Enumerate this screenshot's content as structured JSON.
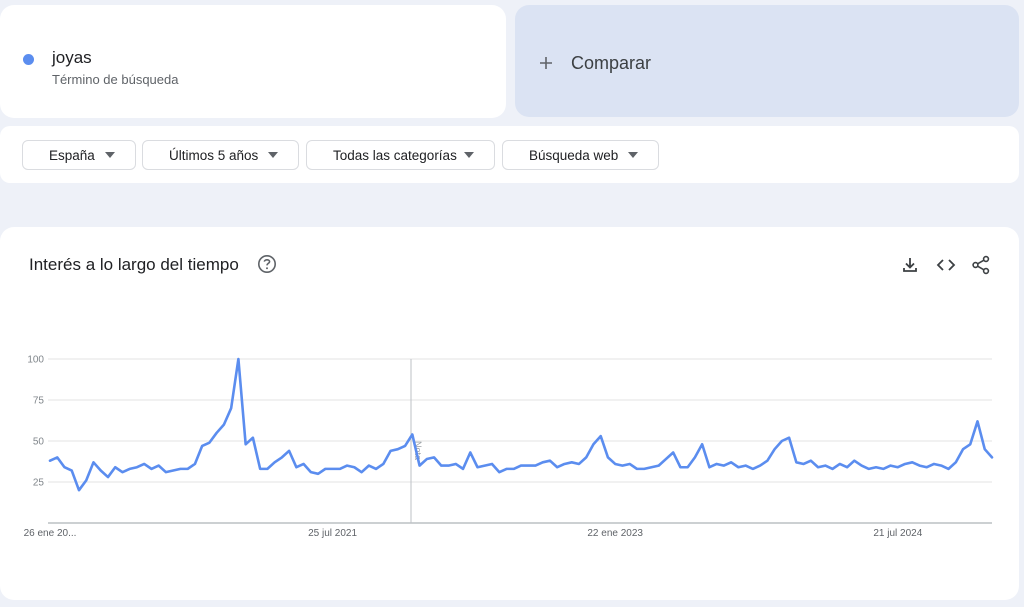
{
  "search_term": {
    "name": "joyas",
    "subtitle": "Término de búsqueda"
  },
  "compare_label": "Comparar",
  "filters": [
    "España",
    "Últimos 5 años",
    "Todas las categorías",
    "Búsqueda web"
  ],
  "chart_data": {
    "type": "line",
    "title": "Interés a lo largo del tiempo",
    "annotation": "Nota",
    "color": "#5b8def",
    "grid": true,
    "ylim": [
      0,
      100
    ],
    "yticks": [
      25,
      50,
      75,
      100
    ],
    "categories": [
      "26 ene 20...",
      null,
      null,
      null,
      null,
      null,
      null,
      null,
      null,
      null,
      null,
      null,
      null,
      null,
      null,
      null,
      null,
      null,
      null,
      null,
      null,
      null,
      null,
      null,
      null,
      null,
      null,
      null,
      null,
      null,
      null,
      null,
      null,
      null,
      null,
      null,
      null,
      null,
      null,
      "25 jul 2021",
      null,
      null,
      null,
      null,
      null,
      null,
      null,
      null,
      null,
      null,
      null,
      null,
      null,
      null,
      null,
      null,
      null,
      null,
      null,
      null,
      null,
      null,
      null,
      null,
      null,
      null,
      null,
      null,
      null,
      null,
      null,
      null,
      null,
      null,
      null,
      null,
      null,
      null,
      "22 ene 2023",
      null,
      null,
      null,
      null,
      null,
      null,
      null,
      null,
      null,
      null,
      null,
      null,
      null,
      null,
      null,
      null,
      null,
      null,
      null,
      null,
      null,
      null,
      null,
      null,
      null,
      null,
      null,
      null,
      null,
      null,
      null,
      null,
      null,
      null,
      null,
      null,
      null,
      null,
      "21 jul 2024",
      null,
      null,
      null,
      null,
      null,
      null,
      null,
      null,
      null,
      null,
      null,
      null,
      null
    ],
    "values": [
      38,
      40,
      34,
      32,
      20,
      26,
      37,
      32,
      28,
      34,
      31,
      33,
      34,
      36,
      33,
      35,
      31,
      32,
      33,
      33,
      36,
      47,
      49,
      55,
      60,
      70,
      100,
      48,
      52,
      33,
      33,
      37,
      40,
      44,
      34,
      36,
      31,
      30,
      33,
      33,
      33,
      35,
      34,
      31,
      35,
      33,
      36,
      44,
      45,
      47,
      54,
      35,
      39,
      40,
      35,
      35,
      36,
      33,
      43,
      34,
      35,
      36,
      31,
      33,
      33,
      35,
      35,
      35,
      37,
      38,
      34,
      36,
      37,
      36,
      40,
      48,
      53,
      40,
      36,
      35,
      36,
      33,
      33,
      34,
      35,
      39,
      43,
      34,
      34,
      40,
      48,
      34,
      36,
      35,
      37,
      34,
      35,
      33,
      35,
      38,
      45,
      50,
      52,
      37,
      36,
      38,
      34,
      35,
      33,
      36,
      34,
      38,
      35,
      33,
      34,
      33,
      35,
      34,
      36,
      37,
      35,
      34,
      36,
      35,
      33,
      37,
      45,
      48,
      62,
      45,
      40
    ]
  }
}
